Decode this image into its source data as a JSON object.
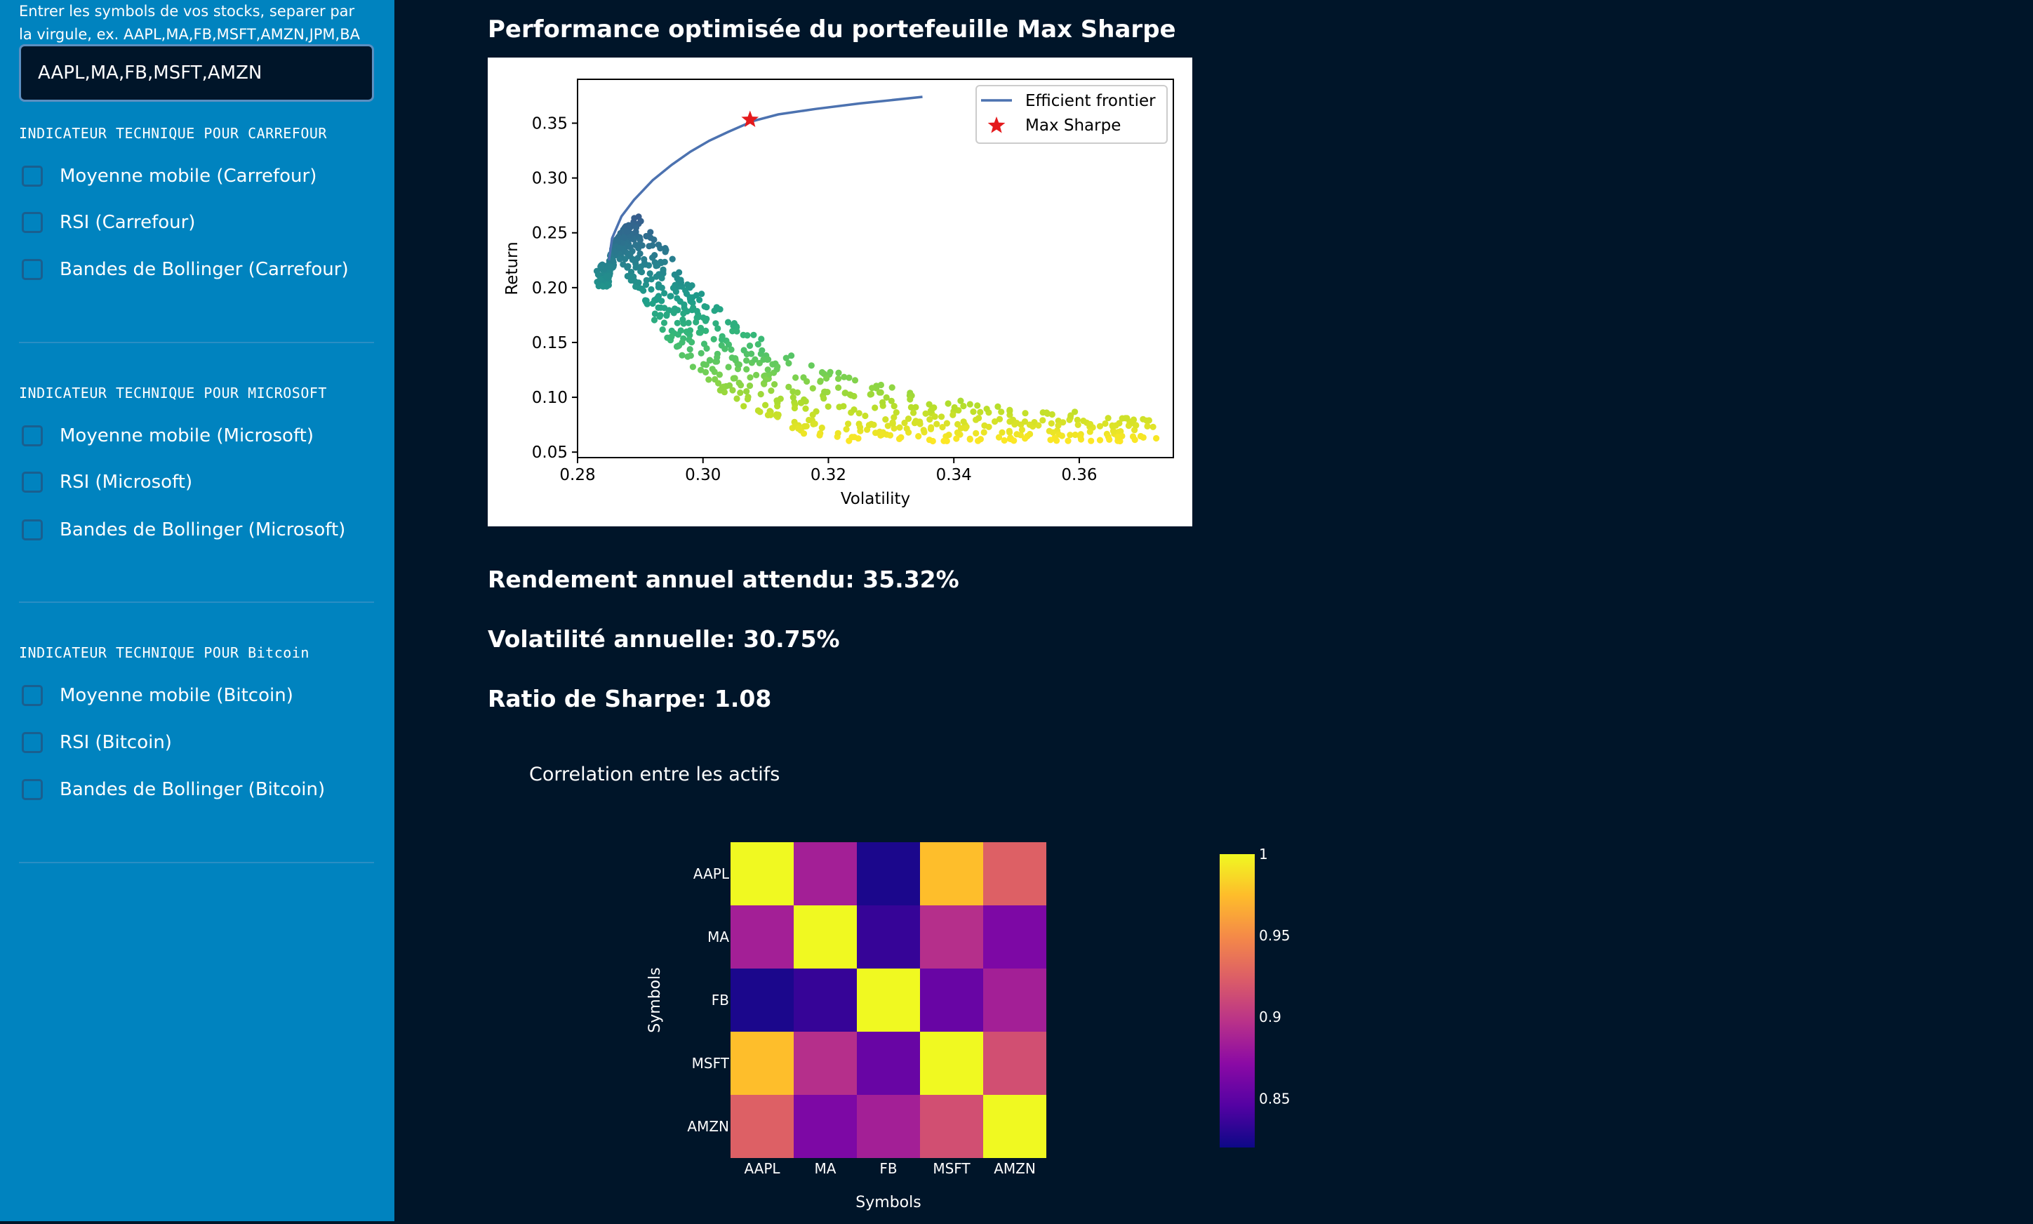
{
  "sidebar": {
    "help_text": "Entrer les symbols de vos stocks, separer par la virgule, ex. AAPL,MA,FB,MSFT,AMZN,JPM,BA",
    "symbols_input": "AAPL,MA,FB,MSFT,AMZN",
    "sections": [
      {
        "heading": "INDICATEUR TECHNIQUE POUR CARREFOUR",
        "options": [
          "Moyenne mobile (Carrefour)",
          "RSI (Carrefour)",
          "Bandes de Bollinger (Carrefour)"
        ]
      },
      {
        "heading": "INDICATEUR TECHNIQUE POUR MICROSOFT",
        "options": [
          "Moyenne mobile (Microsoft)",
          "RSI (Microsoft)",
          "Bandes de Bollinger (Microsoft)"
        ]
      },
      {
        "heading": "INDICATEUR TECHNIQUE POUR Bitcoin",
        "options": [
          "Moyenne mobile (Bitcoin)",
          "RSI (Bitcoin)",
          "Bandes de Bollinger (Bitcoin)"
        ]
      }
    ]
  },
  "main": {
    "title": "Performance optimisée du portefeuille Max Sharpe",
    "return_text": "Rendement annuel attendu: 35.32%",
    "volatility_text": "Volatilité annuelle: 30.75%",
    "sharpe_text": "Ratio de Sharpe: 1.08",
    "corr_title": "Correlation entre les actifs"
  },
  "colors": {
    "sidebar_bg": "#0083bf",
    "main_bg": "#001529",
    "frontier": "#4c72b0",
    "max_sharpe": "#e41a1c"
  },
  "chart_data": [
    {
      "type": "scatter",
      "title": "",
      "xlabel": "Volatility",
      "ylabel": "Return",
      "xlim": [
        0.28,
        0.375
      ],
      "ylim": [
        0.045,
        0.39
      ],
      "xticks": [
        0.28,
        0.3,
        0.32,
        0.34,
        0.36
      ],
      "yticks": [
        0.05,
        0.1,
        0.15,
        0.2,
        0.25,
        0.3,
        0.35
      ],
      "xtick_labels": [
        "0.28",
        "0.30",
        "0.32",
        "0.34",
        "0.36"
      ],
      "ytick_labels": [
        "0.05",
        "0.10",
        "0.15",
        "0.20",
        "0.25",
        "0.30",
        "0.35"
      ],
      "legend": {
        "position": "top-right",
        "entries": [
          "Efficient frontier",
          "Max Sharpe"
        ]
      },
      "frontier": {
        "name": "Efficient frontier",
        "x": [
          0.285,
          0.2855,
          0.287,
          0.289,
          0.292,
          0.295,
          0.298,
          0.301,
          0.304,
          0.308,
          0.312,
          0.318,
          0.325,
          0.335
        ],
        "y": [
          0.225,
          0.245,
          0.265,
          0.28,
          0.298,
          0.312,
          0.324,
          0.334,
          0.342,
          0.352,
          0.358,
          0.363,
          0.368,
          0.374
        ]
      },
      "max_sharpe": {
        "name": "Max Sharpe",
        "x": 0.3075,
        "y": 0.3532
      },
      "scatter_description": "Monte Carlo random portfolios colored by return/volatility (viridis)",
      "scatter_count": 800
    },
    {
      "type": "heatmap",
      "title": "Correlation entre les actifs",
      "xlabel": "Symbols",
      "ylabel": "Symbols",
      "x": [
        "AAPL",
        "MA",
        "FB",
        "MSFT",
        "AMZN"
      ],
      "y": [
        "AAPL",
        "MA",
        "FB",
        "MSFT",
        "AMZN"
      ],
      "z": [
        [
          1.0,
          0.885,
          0.825,
          0.975,
          0.925
        ],
        [
          0.885,
          1.0,
          0.835,
          0.895,
          0.865
        ],
        [
          0.825,
          0.835,
          1.0,
          0.855,
          0.885
        ],
        [
          0.975,
          0.895,
          0.855,
          1.0,
          0.915
        ],
        [
          0.925,
          0.865,
          0.885,
          0.915,
          1.0
        ]
      ],
      "colorscale": "plasma",
      "zrange": [
        0.82,
        1.0
      ],
      "colorbar_ticks": [
        0.85,
        0.9,
        0.95,
        1
      ],
      "colorbar_tick_labels": [
        "0.85",
        "0.9",
        "0.95",
        "1"
      ]
    }
  ]
}
